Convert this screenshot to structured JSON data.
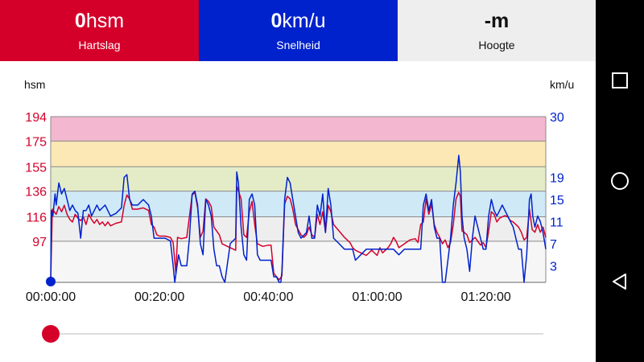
{
  "tiles": {
    "heart_rate": {
      "value": "0",
      "unit": "hsm",
      "label": "Hartslag"
    },
    "speed": {
      "value": "0",
      "unit": "km/u",
      "label": "Snelheid"
    },
    "altitude": {
      "value": "-m",
      "label": "Hoogte"
    }
  },
  "colors": {
    "heart_rate": "#d4002a",
    "speed": "#0022cc",
    "zone_max": "#f3b8cf",
    "zone_4": "#fbe8b5",
    "zone_3": "#e4ecc7",
    "zone_2": "#cfe9f7",
    "zone_1": "#eeeeee",
    "zone_0": "#f6f6f6"
  },
  "chart_data": {
    "type": "line",
    "x_unit": "hh:mm:ss",
    "x_range": [
      "00:00:00",
      "01:31:00"
    ],
    "x_tick_labels": [
      "00:00:00",
      "00:20:00",
      "00:40:00",
      "01:00:00",
      "01:20:00"
    ],
    "left_axis": {
      "label": "hsm",
      "ticks": [
        194,
        175,
        155,
        136,
        116,
        97
      ],
      "range": [
        65,
        194
      ]
    },
    "right_axis": {
      "label": "km/u",
      "ticks": [
        30,
        19,
        15,
        11,
        7,
        3
      ],
      "range": [
        0,
        30
      ]
    },
    "heart_rate_zones": [
      97,
      116,
      136,
      155,
      175,
      194
    ],
    "series": [
      {
        "axis": "left",
        "color": "#d4002a",
        "values": [
          [
            0,
            66
          ],
          [
            0.3,
            122
          ],
          [
            1,
            118
          ],
          [
            1.5,
            124
          ],
          [
            2,
            120
          ],
          [
            2.5,
            125
          ],
          [
            3,
            118
          ],
          [
            3.5,
            114
          ],
          [
            4,
            112
          ],
          [
            4.5,
            118
          ],
          [
            5,
            115
          ],
          [
            5.5,
            113
          ],
          [
            6,
            116
          ],
          [
            6.5,
            110
          ],
          [
            7,
            118
          ],
          [
            7.5,
            114
          ],
          [
            8,
            111
          ],
          [
            8.5,
            114
          ],
          [
            9,
            110
          ],
          [
            9.5,
            112
          ],
          [
            10,
            109
          ],
          [
            10.5,
            112
          ],
          [
            11,
            109
          ],
          [
            12,
            111
          ],
          [
            13,
            112
          ],
          [
            13.5,
            125
          ],
          [
            14,
            133
          ],
          [
            14.5,
            130
          ],
          [
            15,
            122
          ],
          [
            16,
            122
          ],
          [
            17,
            123
          ],
          [
            18,
            121
          ],
          [
            18.5,
            110
          ],
          [
            19,
            108
          ],
          [
            19.5,
            102
          ],
          [
            20,
            101
          ],
          [
            21,
            101
          ],
          [
            22,
            100
          ],
          [
            22.5,
            96
          ],
          [
            23,
            72
          ],
          [
            23.3,
            100
          ],
          [
            24,
            99
          ],
          [
            25,
            100
          ],
          [
            26,
            133
          ],
          [
            26.5,
            135
          ],
          [
            27,
            123
          ],
          [
            27.5,
            100
          ],
          [
            28,
            105
          ],
          [
            28.5,
            130
          ],
          [
            29,
            128
          ],
          [
            29.5,
            124
          ],
          [
            30,
            108
          ],
          [
            31,
            102
          ],
          [
            31.5,
            95
          ],
          [
            32,
            94
          ],
          [
            33,
            92
          ],
          [
            34,
            90
          ],
          [
            34.2,
            140
          ],
          [
            35,
            130
          ],
          [
            35.5,
            102
          ],
          [
            36,
            100
          ],
          [
            36.5,
            120
          ],
          [
            37,
            128
          ],
          [
            37.5,
            110
          ],
          [
            38,
            95
          ],
          [
            39,
            93
          ],
          [
            40,
            94
          ],
          [
            40.5,
            94
          ],
          [
            41,
            72
          ],
          [
            42,
            67
          ],
          [
            42.5,
            70
          ],
          [
            43,
            126
          ],
          [
            43.5,
            132
          ],
          [
            44,
            130
          ],
          [
            44.5,
            122
          ],
          [
            45,
            110
          ],
          [
            46,
            102
          ],
          [
            46.5,
            100
          ],
          [
            47,
            102
          ],
          [
            47.5,
            108
          ],
          [
            48,
            102
          ],
          [
            48.5,
            100
          ],
          [
            49,
            118
          ],
          [
            49.5,
            110
          ],
          [
            50,
            120
          ],
          [
            50.5,
            104
          ],
          [
            51,
            125
          ],
          [
            51.5,
            120
          ],
          [
            52,
            110
          ],
          [
            53,
            105
          ],
          [
            54,
            100
          ],
          [
            55,
            96
          ],
          [
            55.5,
            92
          ],
          [
            56,
            90
          ],
          [
            57,
            88
          ],
          [
            58,
            86
          ],
          [
            59,
            90
          ],
          [
            60,
            86
          ],
          [
            60.5,
            92
          ],
          [
            61,
            88
          ],
          [
            62,
            92
          ],
          [
            62.5,
            95
          ],
          [
            63,
            100
          ],
          [
            63.5,
            97
          ],
          [
            64,
            92
          ],
          [
            65,
            95
          ],
          [
            66,
            98
          ],
          [
            67,
            99
          ],
          [
            67.5,
            96
          ],
          [
            68,
            110
          ],
          [
            68.5,
            112
          ],
          [
            69,
            130
          ],
          [
            69.5,
            118
          ],
          [
            70,
            126
          ],
          [
            70.5,
            110
          ],
          [
            71,
            104
          ],
          [
            71.5,
            100
          ],
          [
            72,
            95
          ],
          [
            72.5,
            98
          ],
          [
            73,
            92
          ],
          [
            73.5,
            96
          ],
          [
            74,
            110
          ],
          [
            74.5,
            130
          ],
          [
            75,
            135
          ],
          [
            75.3,
            132
          ],
          [
            75.6,
            105
          ],
          [
            76,
            104
          ],
          [
            76.5,
            102
          ],
          [
            77,
            96
          ],
          [
            77.5,
            98
          ],
          [
            78,
            100
          ],
          [
            78.5,
            97
          ],
          [
            79,
            94
          ],
          [
            79.5,
            96
          ],
          [
            80,
            92
          ],
          [
            80.5,
            105
          ],
          [
            81,
            120
          ],
          [
            81.5,
            118
          ],
          [
            82,
            112
          ],
          [
            82.5,
            115
          ],
          [
            83,
            116
          ],
          [
            83.5,
            117
          ],
          [
            84,
            116
          ],
          [
            84.5,
            113
          ],
          [
            85,
            112
          ],
          [
            85.5,
            110
          ],
          [
            86,
            108
          ],
          [
            86.5,
            104
          ],
          [
            87,
            98
          ],
          [
            87.5,
            100
          ],
          [
            88,
            122
          ],
          [
            88.5,
            106
          ],
          [
            89,
            104
          ],
          [
            89.5,
            110
          ],
          [
            90,
            104
          ],
          [
            90.5,
            108
          ],
          [
            91,
            100
          ]
        ]
      },
      {
        "axis": "right",
        "color": "#0022cc",
        "values": [
          [
            0,
            0
          ],
          [
            0.1,
            13
          ],
          [
            0.4,
            12
          ],
          [
            0.8,
            16
          ],
          [
            1,
            14
          ],
          [
            1.5,
            18
          ],
          [
            2,
            16
          ],
          [
            2.5,
            17
          ],
          [
            3,
            15
          ],
          [
            3.5,
            13
          ],
          [
            4,
            14
          ],
          [
            4.5,
            13
          ],
          [
            5,
            12.5
          ],
          [
            5.5,
            8
          ],
          [
            6,
            13
          ],
          [
            6.5,
            13
          ],
          [
            7,
            14
          ],
          [
            7.5,
            12
          ],
          [
            8,
            13
          ],
          [
            8.5,
            14
          ],
          [
            9,
            13
          ],
          [
            10,
            14
          ],
          [
            11,
            12
          ],
          [
            12,
            12.5
          ],
          [
            13,
            13.5
          ],
          [
            13.5,
            19
          ],
          [
            14,
            19.5
          ],
          [
            14.5,
            15
          ],
          [
            15,
            14
          ],
          [
            16,
            14
          ],
          [
            17,
            15
          ],
          [
            18,
            14
          ],
          [
            18.5,
            12
          ],
          [
            19,
            8
          ],
          [
            19.5,
            8
          ],
          [
            20,
            8
          ],
          [
            21,
            8
          ],
          [
            22,
            7.5
          ],
          [
            22.5,
            3
          ],
          [
            22.8,
            0
          ],
          [
            23.5,
            5
          ],
          [
            24,
            3
          ],
          [
            25,
            3
          ],
          [
            25.5,
            8
          ],
          [
            26,
            16
          ],
          [
            26.5,
            16.5
          ],
          [
            27,
            14
          ],
          [
            27.5,
            7
          ],
          [
            28,
            5
          ],
          [
            28.5,
            15
          ],
          [
            29,
            14
          ],
          [
            29.5,
            12
          ],
          [
            30,
            6
          ],
          [
            30.5,
            3
          ],
          [
            31,
            3
          ],
          [
            31.5,
            1
          ],
          [
            32,
            0
          ],
          [
            33,
            7
          ],
          [
            34,
            8
          ],
          [
            34.2,
            20
          ],
          [
            34.5,
            18
          ],
          [
            35,
            10
          ],
          [
            35.5,
            5
          ],
          [
            36,
            4
          ],
          [
            36.5,
            15
          ],
          [
            37,
            16
          ],
          [
            37.5,
            14
          ],
          [
            38,
            5
          ],
          [
            38.5,
            4
          ],
          [
            39,
            4
          ],
          [
            40,
            4
          ],
          [
            40.5,
            4
          ],
          [
            41,
            1
          ],
          [
            41.5,
            1
          ],
          [
            42,
            0
          ],
          [
            42.3,
            0
          ],
          [
            42.5,
            2
          ],
          [
            43,
            15
          ],
          [
            43.5,
            19
          ],
          [
            44,
            18
          ],
          [
            44.5,
            15
          ],
          [
            45,
            12
          ],
          [
            45.5,
            9
          ],
          [
            46,
            8
          ],
          [
            47,
            9
          ],
          [
            47.5,
            12
          ],
          [
            48,
            8
          ],
          [
            48.5,
            8
          ],
          [
            49,
            14
          ],
          [
            49.5,
            12
          ],
          [
            50,
            16
          ],
          [
            50.5,
            9
          ],
          [
            51,
            17
          ],
          [
            51.5,
            14
          ],
          [
            52,
            8
          ],
          [
            53,
            7
          ],
          [
            54,
            6
          ],
          [
            55,
            6
          ],
          [
            55.5,
            6
          ],
          [
            56,
            4
          ],
          [
            57,
            5
          ],
          [
            58,
            6
          ],
          [
            59,
            6
          ],
          [
            60,
            6
          ],
          [
            61,
            6
          ],
          [
            62,
            6
          ],
          [
            63,
            6
          ],
          [
            64,
            5
          ],
          [
            65,
            6
          ],
          [
            66,
            6
          ],
          [
            67,
            6
          ],
          [
            68,
            6
          ],
          [
            68.5,
            14
          ],
          [
            69,
            16
          ],
          [
            69.5,
            13
          ],
          [
            70,
            15
          ],
          [
            70.5,
            10
          ],
          [
            71,
            8
          ],
          [
            71.5,
            8
          ],
          [
            72,
            0
          ],
          [
            72.5,
            0
          ],
          [
            73,
            4
          ],
          [
            73.5,
            8
          ],
          [
            74,
            14
          ],
          [
            74.5,
            18
          ],
          [
            75,
            23
          ],
          [
            75.3,
            20
          ],
          [
            75.6,
            12
          ],
          [
            76,
            8
          ],
          [
            76.5,
            6
          ],
          [
            77,
            2
          ],
          [
            77.5,
            8
          ],
          [
            78,
            12
          ],
          [
            78.5,
            10
          ],
          [
            79,
            8
          ],
          [
            79.5,
            6
          ],
          [
            80,
            6
          ],
          [
            80.5,
            12
          ],
          [
            81,
            15
          ],
          [
            81.5,
            13
          ],
          [
            82,
            12
          ],
          [
            82.5,
            13
          ],
          [
            83,
            14
          ],
          [
            83.5,
            13
          ],
          [
            84,
            12
          ],
          [
            84.5,
            11
          ],
          [
            85,
            10
          ],
          [
            85.5,
            8
          ],
          [
            86,
            6
          ],
          [
            86.5,
            6
          ],
          [
            87,
            0
          ],
          [
            87.5,
            5
          ],
          [
            88,
            15
          ],
          [
            88.3,
            16
          ],
          [
            88.6,
            12
          ],
          [
            89,
            10
          ],
          [
            89.5,
            12
          ],
          [
            90,
            11
          ],
          [
            90.5,
            9
          ],
          [
            91,
            6
          ]
        ]
      }
    ],
    "legend": "none",
    "grid": false
  },
  "slider": {
    "value": 0
  }
}
